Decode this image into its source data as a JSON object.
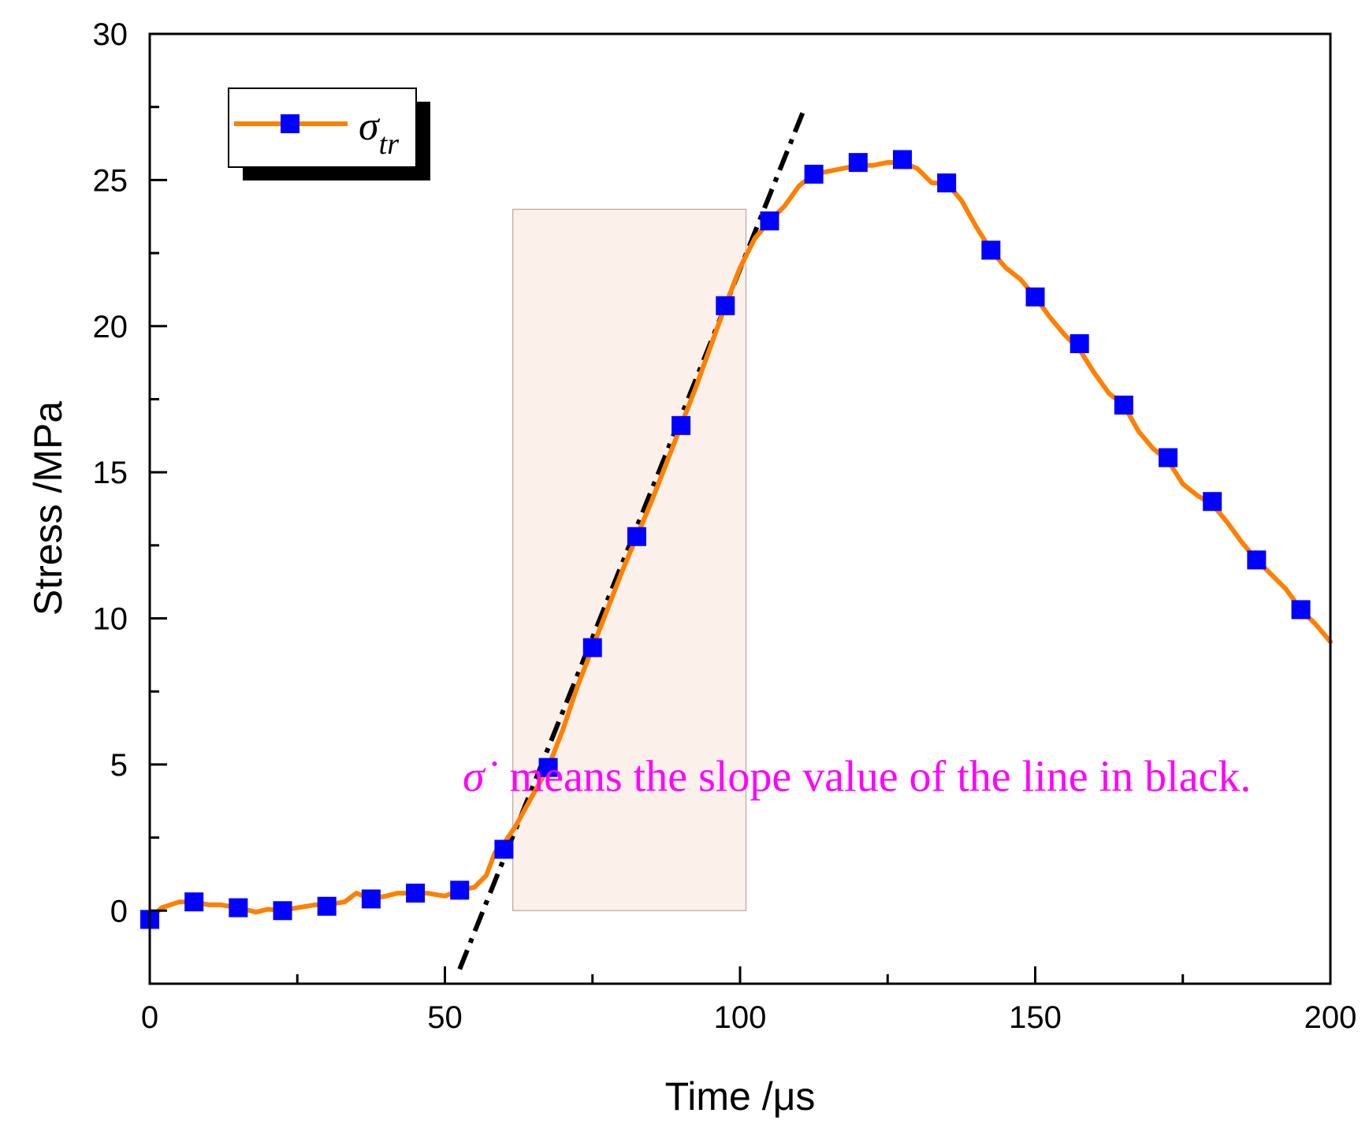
{
  "chart_data": {
    "type": "line",
    "xlabel": "Time /μs",
    "ylabel": "Stress /MPa",
    "xlim": [
      0,
      200
    ],
    "ylim": [
      -2.5,
      30
    ],
    "x_ticks": [
      0,
      50,
      100,
      150,
      200
    ],
    "y_ticks": [
      0,
      5,
      10,
      15,
      20,
      25,
      30
    ],
    "x_tick_labels": [
      "0",
      "50",
      "100",
      "150",
      "200"
    ],
    "y_tick_labels": [
      "0",
      "5",
      "10",
      "15",
      "20",
      "25",
      "30"
    ],
    "legend": {
      "placement": "top-left",
      "symbol": "σ",
      "subscript": "tr"
    },
    "series": [
      {
        "name": "σtr",
        "color": "#ff8000",
        "marker_color": "#0000ff",
        "curve": [
          [
            0,
            -0.3
          ],
          [
            2,
            0.1
          ],
          [
            5,
            0.3
          ],
          [
            7.5,
            0.3
          ],
          [
            10,
            0.2
          ],
          [
            12,
            0.2
          ],
          [
            15,
            0.1
          ],
          [
            18,
            -0.05
          ],
          [
            20,
            0.05
          ],
          [
            22.5,
            0
          ],
          [
            25,
            0.1
          ],
          [
            28,
            0.2
          ],
          [
            30,
            0.2
          ],
          [
            33,
            0.3
          ],
          [
            35,
            0.6
          ],
          [
            37.5,
            0.4
          ],
          [
            40,
            0.5
          ],
          [
            42,
            0.6
          ],
          [
            45,
            0.6
          ],
          [
            47,
            0.6
          ],
          [
            50,
            0.5
          ],
          [
            52.5,
            0.7
          ],
          [
            55,
            0.8
          ],
          [
            57,
            1.2
          ],
          [
            58.5,
            2.0
          ],
          [
            60,
            2.3
          ],
          [
            62,
            2.9
          ],
          [
            65,
            4.0
          ],
          [
            67.5,
            4.9
          ],
          [
            70,
            6.2
          ],
          [
            72.5,
            7.7
          ],
          [
            75,
            9.0
          ],
          [
            77.5,
            10.3
          ],
          [
            80,
            11.6
          ],
          [
            82.5,
            12.8
          ],
          [
            85,
            14.0
          ],
          [
            87.5,
            15.3
          ],
          [
            90,
            16.6
          ],
          [
            92.5,
            17.9
          ],
          [
            95,
            19.3
          ],
          [
            97.5,
            20.7
          ],
          [
            100,
            22.0
          ],
          [
            102.5,
            23.0
          ],
          [
            105,
            23.6
          ],
          [
            107.5,
            24.1
          ],
          [
            110,
            24.8
          ],
          [
            112.5,
            25.2
          ],
          [
            115,
            25.3
          ],
          [
            117.5,
            25.4
          ],
          [
            120,
            25.5
          ],
          [
            122.5,
            25.5
          ],
          [
            125,
            25.6
          ],
          [
            127.5,
            25.6
          ],
          [
            130,
            25.4
          ],
          [
            132.5,
            24.9
          ],
          [
            135,
            24.9
          ],
          [
            137.5,
            24.3
          ],
          [
            140,
            23.4
          ],
          [
            142.5,
            22.6
          ],
          [
            145,
            22.0
          ],
          [
            147.5,
            21.6
          ],
          [
            150,
            21.0
          ],
          [
            152.5,
            20.3
          ],
          [
            155,
            19.7
          ],
          [
            157.5,
            19.2
          ],
          [
            160,
            18.4
          ],
          [
            162.5,
            17.7
          ],
          [
            165,
            17.3
          ],
          [
            167.5,
            16.4
          ],
          [
            170,
            15.8
          ],
          [
            172.5,
            15.4
          ],
          [
            175,
            14.6
          ],
          [
            177.5,
            14.2
          ],
          [
            180,
            13.9
          ],
          [
            182.5,
            13.3
          ],
          [
            185,
            12.6
          ],
          [
            187.5,
            12.0
          ],
          [
            190,
            11.5
          ],
          [
            192.5,
            11.0
          ],
          [
            195,
            10.3
          ],
          [
            197.5,
            9.8
          ],
          [
            200,
            9.2
          ]
        ],
        "markers": [
          [
            0,
            -0.3
          ],
          [
            7.5,
            0.3
          ],
          [
            15,
            0.1
          ],
          [
            22.5,
            0
          ],
          [
            30,
            0.15
          ],
          [
            37.5,
            0.4
          ],
          [
            45,
            0.6
          ],
          [
            52.5,
            0.7
          ],
          [
            60,
            2.1
          ],
          [
            67.5,
            4.9
          ],
          [
            75,
            9.0
          ],
          [
            82.5,
            12.8
          ],
          [
            90,
            16.6
          ],
          [
            97.5,
            20.7
          ],
          [
            105,
            23.6
          ],
          [
            112.5,
            25.2
          ],
          [
            120,
            25.6
          ],
          [
            127.5,
            25.7
          ],
          [
            135,
            24.9
          ],
          [
            142.5,
            22.6
          ],
          [
            150,
            21.0
          ],
          [
            157.5,
            19.4
          ],
          [
            165,
            17.3
          ],
          [
            172.5,
            15.5
          ],
          [
            180,
            14.0
          ],
          [
            187.5,
            12.0
          ],
          [
            195,
            10.3
          ]
        ]
      }
    ],
    "fit_line": {
      "style": "dash-dot",
      "color": "#000000",
      "from": [
        52.5,
        -2.0
      ],
      "to": [
        111,
        27.5
      ]
    },
    "highlight_region": {
      "x_range": [
        61.5,
        101
      ],
      "y_range": [
        0,
        24
      ],
      "color": "#fbf0ea"
    },
    "annotation": {
      "symbol": "σ̇",
      "text": "means the slope value of the line in black.",
      "color": "#ff00ff",
      "anchor": [
        53,
        4.1
      ]
    }
  }
}
